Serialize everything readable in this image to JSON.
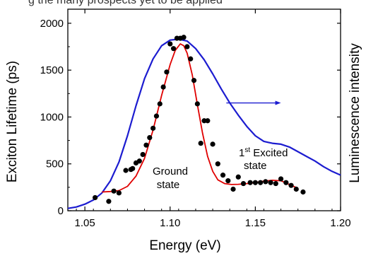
{
  "header": {
    "cropped_text": "g the many prospects yet to be applied"
  },
  "chart_data": {
    "type": "scatter",
    "title": "",
    "xlabel": "Energy (eV)",
    "ylabel": "Exciton Lifetime (ps)",
    "y2label": "Luminescence intensity",
    "xlim": [
      1.04,
      1.2
    ],
    "ylim": [
      0,
      2150
    ],
    "xticks": [
      "1.05",
      "1.10",
      "1.15",
      "1.20"
    ],
    "yticks": [
      "0",
      "500",
      "1000",
      "1500",
      "2000"
    ],
    "grid": false,
    "annotations": {
      "ground_line1": "Ground",
      "ground_line2": "state",
      "excited_num": "1",
      "excited_sup": "st",
      "excited_rest": " Excited",
      "excited_line2": "state"
    },
    "series": [
      {
        "type": "scatter",
        "color": "#000000",
        "x": [
          1.056,
          1.064,
          1.067,
          1.07,
          1.074,
          1.077,
          1.078,
          1.08,
          1.082,
          1.084,
          1.086,
          1.088,
          1.09,
          1.092,
          1.094,
          1.096,
          1.098,
          1.1,
          1.102,
          1.104,
          1.106,
          1.108,
          1.11,
          1.112,
          1.114,
          1.116,
          1.118,
          1.12,
          1.122,
          1.125,
          1.128,
          1.131,
          1.134,
          1.137,
          1.14,
          1.143,
          1.147,
          1.15,
          1.153,
          1.156,
          1.159,
          1.162,
          1.165,
          1.168,
          1.171,
          1.174,
          1.178
        ],
        "y": [
          140,
          100,
          210,
          190,
          430,
          440,
          450,
          510,
          530,
          600,
          700,
          780,
          880,
          1010,
          1140,
          1320,
          1480,
          1780,
          1730,
          1840,
          1840,
          1850,
          1750,
          1620,
          1390,
          1140,
          720,
          960,
          960,
          710,
          500,
          380,
          320,
          230,
          360,
          290,
          300,
          300,
          300,
          310,
          300,
          290,
          340,
          300,
          270,
          230,
          200
        ]
      },
      {
        "name": "fit",
        "type": "line",
        "color": "#e00000",
        "x": [
          1.06,
          1.065,
          1.07,
          1.075,
          1.08,
          1.085,
          1.09,
          1.095,
          1.1,
          1.103,
          1.106,
          1.108,
          1.11,
          1.113,
          1.116,
          1.119,
          1.122,
          1.125,
          1.128,
          1.132,
          1.136,
          1.14,
          1.145,
          1.15,
          1.155,
          1.16,
          1.165,
          1.17,
          1.175
        ],
        "y": [
          200,
          205,
          215,
          260,
          370,
          560,
          860,
          1230,
          1560,
          1710,
          1780,
          1760,
          1680,
          1450,
          1130,
          830,
          580,
          420,
          330,
          290,
          280,
          282,
          290,
          300,
          315,
          325,
          320,
          280,
          240
        ]
      },
      {
        "name": "Luminescence intensity",
        "type": "line",
        "axis": "right",
        "color": "#1c1cd0",
        "x": [
          1.04,
          1.045,
          1.05,
          1.055,
          1.06,
          1.065,
          1.07,
          1.075,
          1.08,
          1.085,
          1.09,
          1.095,
          1.1,
          1.105,
          1.11,
          1.115,
          1.12,
          1.125,
          1.13,
          1.135,
          1.14,
          1.145,
          1.15,
          1.155,
          1.16,
          1.165,
          1.17,
          1.175,
          1.18,
          1.185,
          1.19,
          1.195,
          1.2
        ],
        "y": [
          25,
          40,
          70,
          115,
          190,
          320,
          520,
          800,
          1120,
          1410,
          1620,
          1760,
          1820,
          1830,
          1810,
          1730,
          1610,
          1460,
          1300,
          1150,
          1020,
          900,
          800,
          740,
          720,
          710,
          680,
          630,
          580,
          530,
          470,
          420,
          380
        ]
      }
    ],
    "arrow": {
      "from": [
        1.133,
        1150
      ],
      "to": [
        1.165,
        1150
      ],
      "color": "#1c1cd0"
    }
  }
}
